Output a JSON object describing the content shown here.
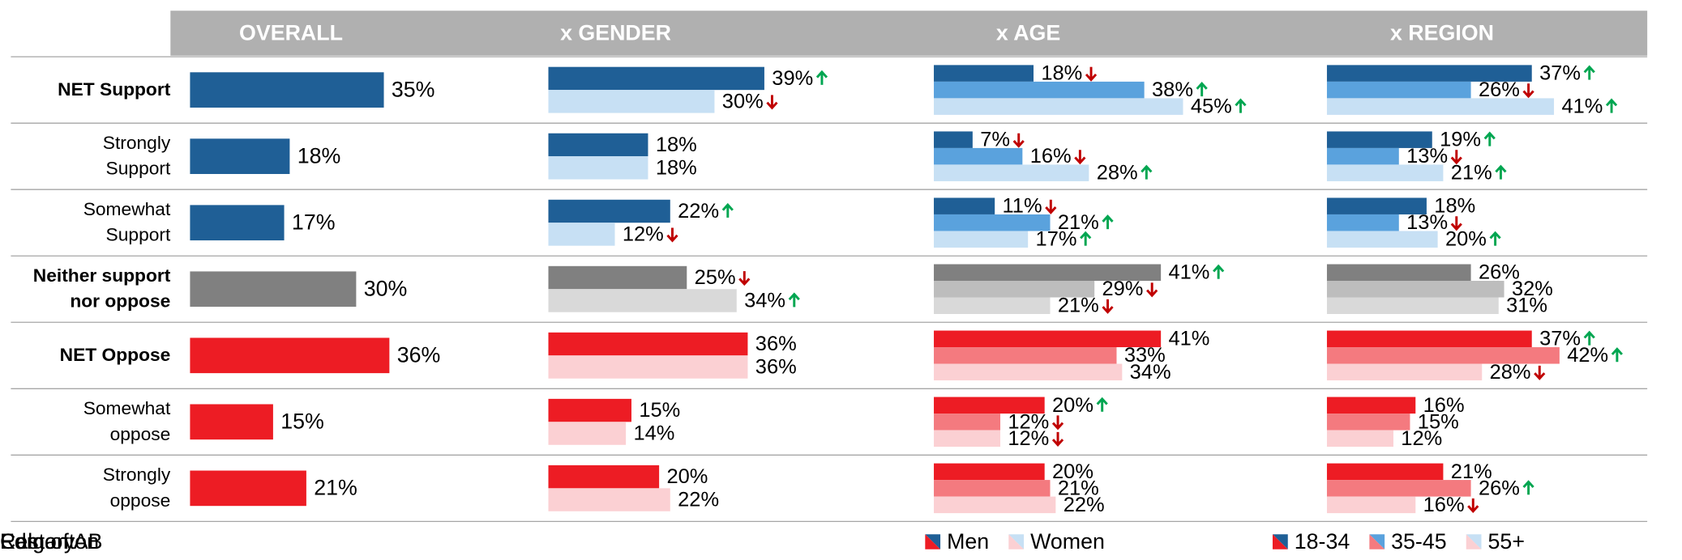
{
  "chart_data": {
    "type": "bar_table",
    "columns": [
      "OVERALL",
      "x GENDER",
      "x AGE",
      "x REGION"
    ],
    "legends": [
      null,
      [
        "Men",
        "Women"
      ],
      [
        "18-34",
        "35-45",
        "55+"
      ],
      [
        "Calgary",
        "Edmonton",
        "Rest of AB"
      ]
    ],
    "up_color": "#00a651",
    "down_color": "#c00000",
    "rows": [
      {
        "label": "NET Support",
        "bold": true,
        "palette": [
          "#1f5f96",
          "#5aa2dd",
          "#c7e0f4"
        ],
        "groups": [
          {
            "values": [
              35
            ],
            "value_labels": [
              "35%"
            ],
            "sig": [
              null
            ]
          },
          {
            "values": [
              39,
              30
            ],
            "value_labels": [
              "39%",
              "30%"
            ],
            "sig": [
              "up",
              "down"
            ]
          },
          {
            "values": [
              18,
              38,
              45
            ],
            "value_labels": [
              "18%",
              "38%",
              "45%"
            ],
            "sig": [
              "down",
              "up",
              "up"
            ]
          },
          {
            "values": [
              37,
              26,
              41
            ],
            "value_labels": [
              "37%",
              "26%",
              "41%"
            ],
            "sig": [
              "up",
              "down",
              "up"
            ]
          }
        ]
      },
      {
        "label": "Strongly Support",
        "bold": false,
        "palette": [
          "#1f5f96",
          "#5aa2dd",
          "#c7e0f4"
        ],
        "groups": [
          {
            "values": [
              18
            ],
            "value_labels": [
              "18%"
            ],
            "sig": [
              null
            ]
          },
          {
            "values": [
              18,
              18
            ],
            "value_labels": [
              "18%",
              "18%"
            ],
            "sig": [
              null,
              null
            ]
          },
          {
            "values": [
              7,
              16,
              28
            ],
            "value_labels": [
              "7%",
              "16%",
              "28%"
            ],
            "sig": [
              "down",
              "down",
              "up"
            ]
          },
          {
            "values": [
              19,
              13,
              21
            ],
            "value_labels": [
              "19%",
              "13%",
              "21%"
            ],
            "sig": [
              "up",
              "down",
              "up"
            ]
          }
        ]
      },
      {
        "label": "Somewhat Support",
        "bold": false,
        "palette": [
          "#1f5f96",
          "#5aa2dd",
          "#c7e0f4"
        ],
        "groups": [
          {
            "values": [
              17
            ],
            "value_labels": [
              "17%"
            ],
            "sig": [
              null
            ]
          },
          {
            "values": [
              22,
              12
            ],
            "value_labels": [
              "22%",
              "12%"
            ],
            "sig": [
              "up",
              "down"
            ]
          },
          {
            "values": [
              11,
              21,
              17
            ],
            "value_labels": [
              "11%",
              "21%",
              "17%"
            ],
            "sig": [
              "down",
              "up",
              "up"
            ]
          },
          {
            "values": [
              18,
              13,
              20
            ],
            "value_labels": [
              "18%",
              "13%",
              "20%"
            ],
            "sig": [
              null,
              "down",
              "up"
            ]
          }
        ]
      },
      {
        "label": "Neither support nor oppose",
        "bold": true,
        "palette": [
          "#808080",
          "#bdbdbd",
          "#d9d9d9"
        ],
        "groups": [
          {
            "values": [
              30
            ],
            "value_labels": [
              "30%"
            ],
            "sig": [
              null
            ]
          },
          {
            "values": [
              25,
              34
            ],
            "value_labels": [
              "25%",
              "34%"
            ],
            "sig": [
              "down",
              "up"
            ]
          },
          {
            "values": [
              41,
              29,
              21
            ],
            "value_labels": [
              "41%",
              "29%",
              "21%"
            ],
            "sig": [
              "up",
              "down",
              "down"
            ]
          },
          {
            "values": [
              26,
              32,
              31
            ],
            "value_labels": [
              "26%",
              "32%",
              "31%"
            ],
            "sig": [
              null,
              null,
              null
            ]
          }
        ]
      },
      {
        "label": "NET Oppose",
        "bold": true,
        "palette": [
          "#ed1c24",
          "#f47a7f",
          "#fbd0d3"
        ],
        "groups": [
          {
            "values": [
              36
            ],
            "value_labels": [
              "36%"
            ],
            "sig": [
              null
            ]
          },
          {
            "values": [
              36,
              36
            ],
            "value_labels": [
              "36%",
              "36%"
            ],
            "sig": [
              null,
              null
            ]
          },
          {
            "values": [
              41,
              33,
              34
            ],
            "value_labels": [
              "41%",
              "33%",
              "34%"
            ],
            "sig": [
              null,
              null,
              null
            ]
          },
          {
            "values": [
              37,
              42,
              28
            ],
            "value_labels": [
              "37%",
              "42%",
              "28%"
            ],
            "sig": [
              "up",
              "up",
              "down"
            ]
          }
        ]
      },
      {
        "label": "Somewhat oppose",
        "bold": false,
        "palette": [
          "#ed1c24",
          "#f47a7f",
          "#fbd0d3"
        ],
        "groups": [
          {
            "values": [
              15
            ],
            "value_labels": [
              "15%"
            ],
            "sig": [
              null
            ]
          },
          {
            "values": [
              15,
              14
            ],
            "value_labels": [
              "15%",
              "14%"
            ],
            "sig": [
              null,
              null
            ]
          },
          {
            "values": [
              20,
              12,
              12
            ],
            "value_labels": [
              "20%",
              "12%",
              "12%"
            ],
            "sig": [
              "up",
              "down",
              "down"
            ]
          },
          {
            "values": [
              16,
              15,
              12
            ],
            "value_labels": [
              "16%",
              "15%",
              "12%"
            ],
            "sig": [
              null,
              null,
              null
            ]
          }
        ]
      },
      {
        "label": "Strongly oppose",
        "bold": false,
        "palette": [
          "#ed1c24",
          "#f47a7f",
          "#fbd0d3"
        ],
        "groups": [
          {
            "values": [
              21
            ],
            "value_labels": [
              "21%"
            ],
            "sig": [
              null
            ]
          },
          {
            "values": [
              20,
              22
            ],
            "value_labels": [
              "20%",
              "22%"
            ],
            "sig": [
              null,
              null
            ]
          },
          {
            "values": [
              20,
              21,
              22
            ],
            "value_labels": [
              "20%",
              "21%",
              "22%"
            ],
            "sig": [
              null,
              null,
              null
            ]
          },
          {
            "values": [
              21,
              26,
              16
            ],
            "value_labels": [
              "21%",
              "26%",
              "16%"
            ],
            "sig": [
              null,
              "up",
              "down"
            ]
          }
        ]
      }
    ]
  }
}
